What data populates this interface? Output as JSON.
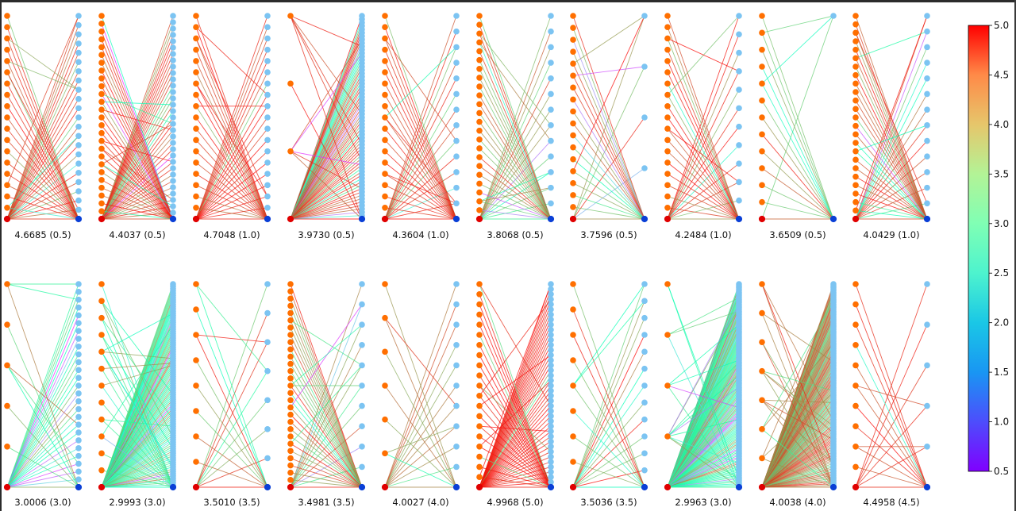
{
  "chart_data": {
    "type": "network-grid",
    "description": "2x10 grid of bipartite graph panels; each panel captioned 'score (parameter)'; edges colored by rainbow colormap",
    "colorbar": {
      "colormap": "rainbow",
      "range": [
        0.5,
        5.0
      ],
      "ticks": [
        "5.0",
        "4.5",
        "4.0",
        "3.5",
        "3.0",
        "2.5",
        "2.0",
        "1.5",
        "1.0",
        "0.5"
      ],
      "placement": "right"
    },
    "node_colors": {
      "left": "#ff6f00",
      "left_source": "#e00000",
      "right": "#7cc4f2",
      "right_sink": "#0a3fd6"
    },
    "panels": [
      {
        "row": 0,
        "caption": "4.6685 (0.5)",
        "score": 4.6685,
        "param": 0.5,
        "left_nodes": 18,
        "right_nodes": 22,
        "edge_bias": "high",
        "seed": 11
      },
      {
        "row": 0,
        "caption": "4.4037 (0.5)",
        "score": 4.4037,
        "param": 0.5,
        "left_nodes": 26,
        "right_nodes": 32,
        "edge_bias": "high-mixed",
        "seed": 23
      },
      {
        "row": 0,
        "caption": "4.7048 (1.0)",
        "score": 4.7048,
        "param": 1.0,
        "left_nodes": 18,
        "right_nodes": 18,
        "edge_bias": "high",
        "seed": 37
      },
      {
        "row": 0,
        "caption": "3.9730 (0.5)",
        "score": 3.973,
        "param": 0.5,
        "left_nodes": 3,
        "right_nodes": 60,
        "edge_bias": "high-mixed",
        "seed": 41
      },
      {
        "row": 0,
        "caption": "4.3604 (1.0)",
        "score": 4.3604,
        "param": 1.0,
        "left_nodes": 18,
        "right_nodes": 13,
        "edge_bias": "high",
        "seed": 53
      },
      {
        "row": 0,
        "caption": "3.8068 (0.5)",
        "score": 3.8068,
        "param": 0.5,
        "left_nodes": 23,
        "right_nodes": 13,
        "edge_bias": "mid",
        "seed": 67
      },
      {
        "row": 0,
        "caption": "3.7596 (0.5)",
        "score": 3.7596,
        "param": 0.5,
        "left_nodes": 17,
        "right_nodes": 4,
        "edge_bias": "mid",
        "seed": 71
      },
      {
        "row": 0,
        "caption": "4.2484 (1.0)",
        "score": 4.2484,
        "param": 1.0,
        "left_nodes": 18,
        "right_nodes": 11,
        "edge_bias": "high",
        "seed": 83
      },
      {
        "row": 0,
        "caption": "3.6509 (0.5)",
        "score": 3.6509,
        "param": 0.5,
        "left_nodes": 12,
        "right_nodes": 1,
        "edge_bias": "mid",
        "seed": 97
      },
      {
        "row": 0,
        "caption": "4.0429 (1.0)",
        "score": 4.0429,
        "param": 1.0,
        "left_nodes": 24,
        "right_nodes": 13,
        "edge_bias": "high-mixed",
        "seed": 101
      },
      {
        "row": 1,
        "caption": "3.0006 (3.0)",
        "score": 3.0006,
        "param": 3.0,
        "left_nodes": 5,
        "right_nodes": 26,
        "edge_bias": "low",
        "seed": 113
      },
      {
        "row": 1,
        "caption": "2.9993 (3.0)",
        "score": 2.9993,
        "param": 3.0,
        "left_nodes": 12,
        "right_nodes": 90,
        "edge_bias": "low",
        "seed": 127
      },
      {
        "row": 1,
        "caption": "3.5010 (3.5)",
        "score": 3.501,
        "param": 3.5,
        "left_nodes": 8,
        "right_nodes": 7,
        "edge_bias": "mid",
        "seed": 131
      },
      {
        "row": 1,
        "caption": "3.4981 (3.5)",
        "score": 3.4981,
        "param": 3.5,
        "left_nodes": 28,
        "right_nodes": 10,
        "edge_bias": "mid",
        "seed": 139
      },
      {
        "row": 1,
        "caption": "4.0027 (4.0)",
        "score": 4.0027,
        "param": 4.0,
        "left_nodes": 6,
        "right_nodes": 10,
        "edge_bias": "mid-high",
        "seed": 149
      },
      {
        "row": 1,
        "caption": "4.9968 (5.0)",
        "score": 4.9968,
        "param": 5.0,
        "left_nodes": 20,
        "right_nodes": 40,
        "edge_bias": "max",
        "seed": 151
      },
      {
        "row": 1,
        "caption": "3.5036 (3.5)",
        "score": 3.5036,
        "param": 3.5,
        "left_nodes": 8,
        "right_nodes": 12,
        "edge_bias": "mid",
        "seed": 163
      },
      {
        "row": 1,
        "caption": "2.9963 (3.0)",
        "score": 2.9963,
        "param": 3.0,
        "left_nodes": 4,
        "right_nodes": 120,
        "edge_bias": "low",
        "seed": 173
      },
      {
        "row": 1,
        "caption": "4.0038 (4.0)",
        "score": 4.0038,
        "param": 4.0,
        "left_nodes": 7,
        "right_nodes": 120,
        "edge_bias": "mid-high",
        "seed": 181
      },
      {
        "row": 1,
        "caption": "4.4958 (4.5)",
        "score": 4.4958,
        "param": 4.5,
        "left_nodes": 10,
        "right_nodes": 5,
        "edge_bias": "high",
        "seed": 191
      }
    ]
  }
}
